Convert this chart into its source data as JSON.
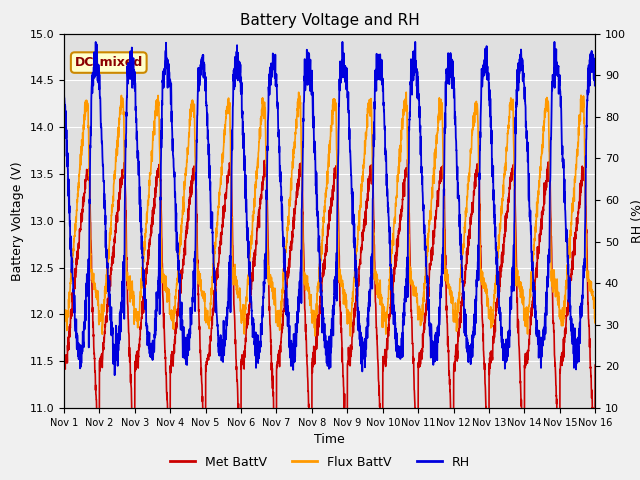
{
  "title": "Battery Voltage and RH",
  "xlabel": "Time",
  "ylabel_left": "Battery Voltage (V)",
  "ylabel_right": "RH (%)",
  "annotation": "DC_mixed",
  "ylim_left": [
    11.0,
    15.0
  ],
  "ylim_right": [
    10,
    100
  ],
  "yticks_left": [
    11.0,
    11.5,
    12.0,
    12.5,
    13.0,
    13.5,
    14.0,
    14.5,
    15.0
  ],
  "yticks_right": [
    10,
    20,
    30,
    40,
    50,
    60,
    70,
    80,
    90,
    100
  ],
  "xtick_positions": [
    0,
    1,
    2,
    3,
    4,
    5,
    6,
    7,
    8,
    9,
    10,
    11,
    12,
    13,
    14,
    15
  ],
  "xtick_labels": [
    "Nov 1",
    "Nov 2",
    "Nov 3",
    "Nov 4",
    "Nov 5",
    "Nov 6",
    "Nov 7",
    "Nov 8",
    "Nov 9",
    "Nov 10",
    "Nov 11",
    "Nov 12",
    "Nov 13",
    "Nov 14",
    "Nov 15",
    "Nov 16"
  ],
  "met_battv_color": "#cc0000",
  "flux_battv_color": "#ff9900",
  "rh_color": "#0000dd",
  "legend_labels": [
    "Met BattV",
    "Flux BattV",
    "RH"
  ],
  "background_color": "#e0e0e0",
  "grid_color": "#ffffff",
  "annotation_bg": "#ffffcc",
  "annotation_border": "#cc8800",
  "fig_facecolor": "#f0f0f0"
}
